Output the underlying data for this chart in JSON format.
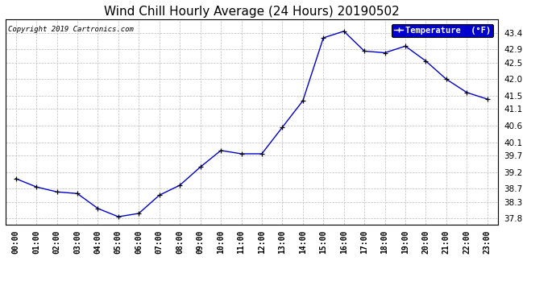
{
  "title": "Wind Chill Hourly Average (24 Hours) 20190502",
  "copyright_text": "Copyright 2019 Cartronics.com",
  "legend_label": "Temperature  (°F)",
  "hours": [
    "00:00",
    "01:00",
    "02:00",
    "03:00",
    "04:00",
    "05:00",
    "06:00",
    "07:00",
    "08:00",
    "09:00",
    "10:00",
    "11:00",
    "12:00",
    "13:00",
    "14:00",
    "15:00",
    "16:00",
    "17:00",
    "18:00",
    "19:00",
    "20:00",
    "21:00",
    "22:00",
    "23:00"
  ],
  "values": [
    39.0,
    38.75,
    38.6,
    38.55,
    38.1,
    37.85,
    37.95,
    38.5,
    38.8,
    39.35,
    39.85,
    39.75,
    39.75,
    40.55,
    41.35,
    43.25,
    43.45,
    42.85,
    42.8,
    43.0,
    42.55,
    42.0,
    41.6,
    41.4
  ],
  "ylim_min": 37.6,
  "ylim_max": 43.8,
  "yticks": [
    37.8,
    38.3,
    38.7,
    39.2,
    39.7,
    40.1,
    40.6,
    41.1,
    41.5,
    42.0,
    42.5,
    42.9,
    43.4
  ],
  "line_color": "#0000cc",
  "marker_color": "#000000",
  "background_color": "#ffffff",
  "grid_color": "#bbbbbb",
  "title_fontsize": 11,
  "copyright_fontsize": 6.5,
  "tick_fontsize": 7,
  "ytick_fontsize": 7.5,
  "legend_bg": "#0000cc",
  "legend_fg": "#ffffff"
}
